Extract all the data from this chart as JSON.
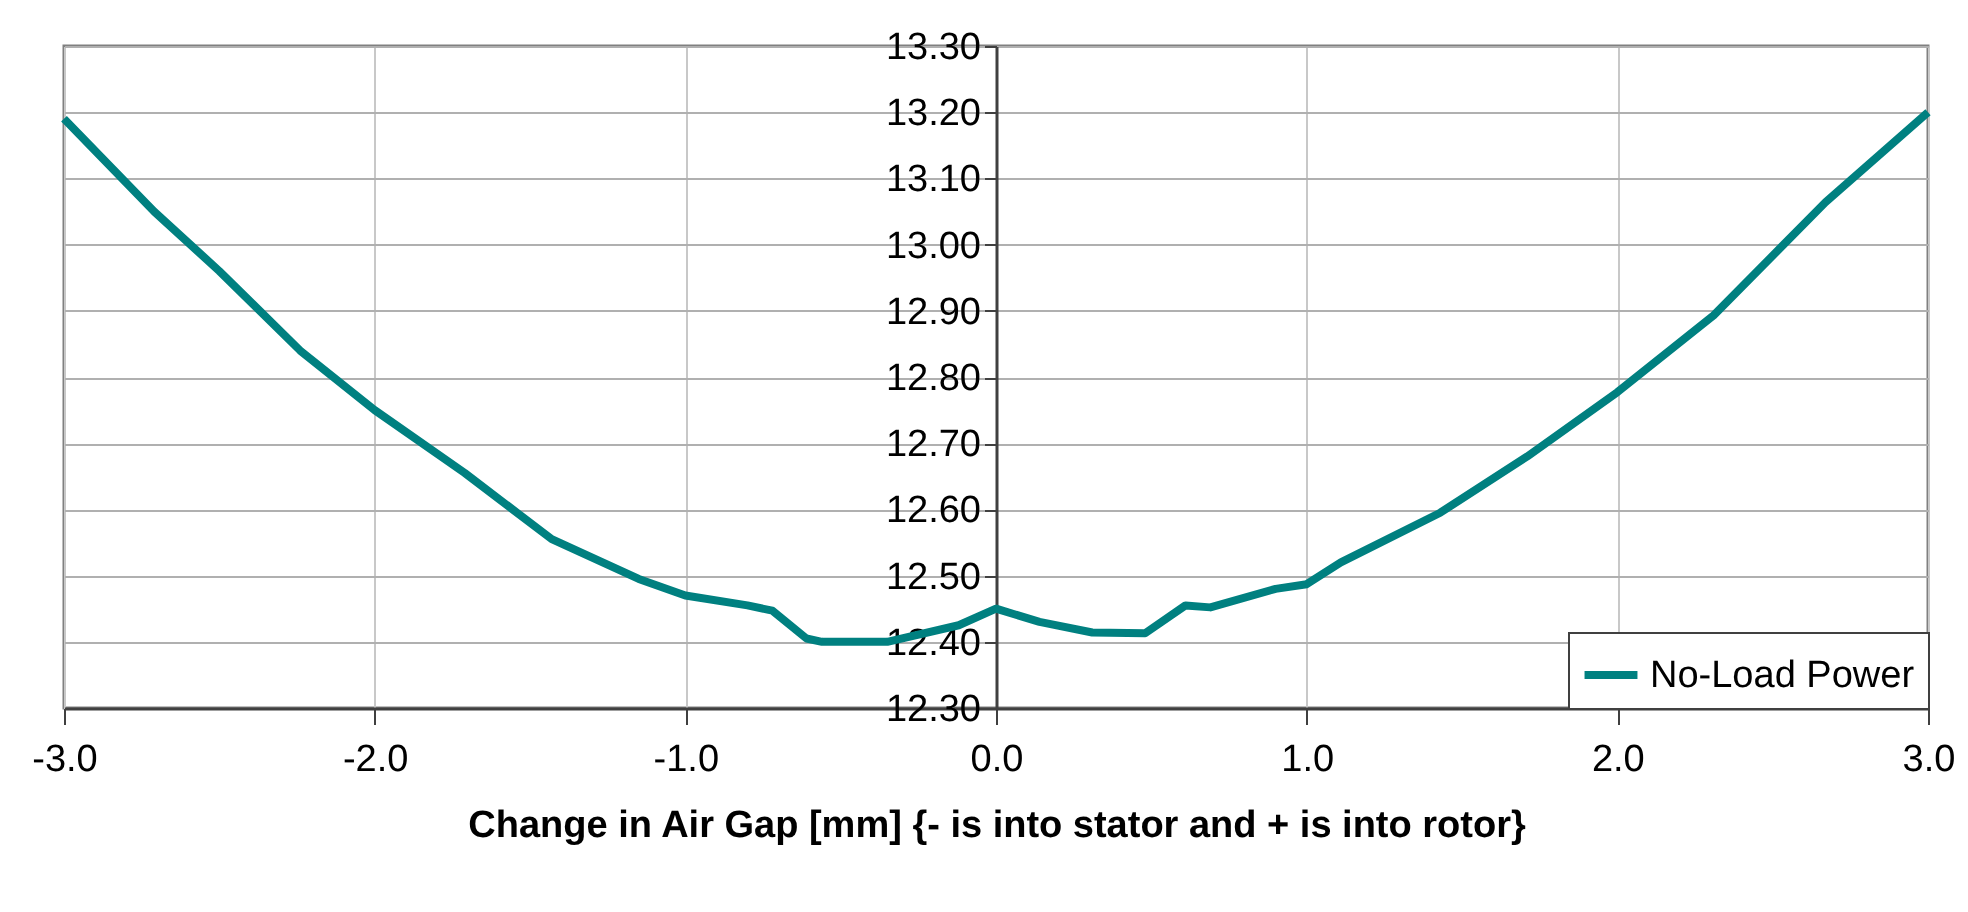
{
  "chart_data": {
    "type": "line",
    "xlabel": "Change in Air Gap [mm] {- is into stator and + is into rotor}",
    "x": [
      -3.0,
      -2.71,
      -2.5,
      -2.24,
      -2.0,
      -1.71,
      -1.43,
      -1.15,
      -1.0,
      -0.8,
      -0.72,
      -0.61,
      -0.56,
      -0.35,
      -0.12,
      0.0,
      0.14,
      0.31,
      0.48,
      0.61,
      0.69,
      0.9,
      1.0,
      1.11,
      1.43,
      1.71,
      2.0,
      2.31,
      2.67,
      3.0
    ],
    "series": [
      {
        "name": "No-Load Power",
        "color": "#008080",
        "values": [
          13.19,
          13.05,
          12.96,
          12.84,
          12.75,
          12.655,
          12.555,
          12.495,
          12.47,
          12.455,
          12.447,
          12.405,
          12.4,
          12.4,
          12.425,
          12.45,
          12.43,
          12.414,
          12.413,
          12.455,
          12.452,
          12.48,
          12.487,
          12.52,
          12.595,
          12.68,
          12.777,
          12.893,
          13.064,
          13.2
        ]
      }
    ],
    "xlim": [
      -3.0,
      3.0
    ],
    "xticks": [
      {
        "value": -3,
        "label": "-3.0"
      },
      {
        "value": -2,
        "label": "-2.0"
      },
      {
        "value": -1,
        "label": "-1.0"
      },
      {
        "value": 0,
        "label": "0.0"
      },
      {
        "value": 1,
        "label": "1.0"
      },
      {
        "value": 2,
        "label": "2.0"
      },
      {
        "value": 3,
        "label": "3.0"
      }
    ],
    "ylim": [
      12.3,
      13.3
    ],
    "yticks": [
      {
        "value": 12.3,
        "label": "12.30"
      },
      {
        "value": 12.4,
        "label": "12.40"
      },
      {
        "value": 12.5,
        "label": "12.50"
      },
      {
        "value": 12.6,
        "label": "12.60"
      },
      {
        "value": 12.7,
        "label": "12.70"
      },
      {
        "value": 12.8,
        "label": "12.80"
      },
      {
        "value": 12.9,
        "label": "12.90"
      },
      {
        "value": 13.0,
        "label": "13.00"
      },
      {
        "value": 13.1,
        "label": "13.10"
      },
      {
        "value": 13.2,
        "label": "13.20"
      },
      {
        "value": 13.3,
        "label": "13.30"
      }
    ],
    "grid": true,
    "legend": "bottom right",
    "marker": "none",
    "line_style": "solid"
  }
}
